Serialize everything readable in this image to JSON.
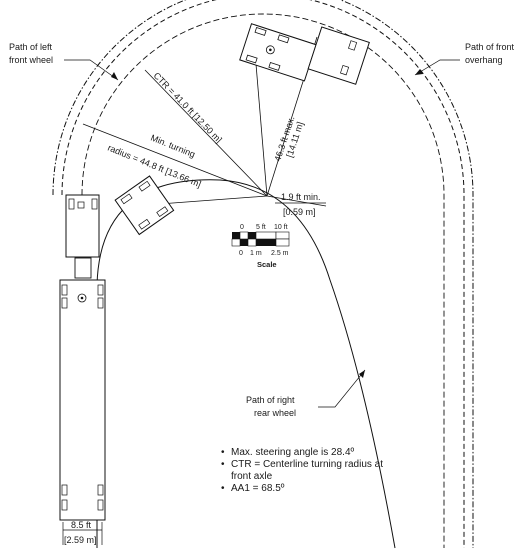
{
  "labels": {
    "left_wheel_path": [
      "Path of left",
      "front wheel"
    ],
    "front_overhang_path": [
      "Path of front",
      "overhang"
    ],
    "right_rear_path": [
      "Path of right",
      "rear wheel"
    ],
    "ctr": "CTR = 41.0 ft [12.50 m]",
    "min_turning_1": "Min. turning",
    "min_turning_2": "radius = 44.8 ft [13.66 m]",
    "max_overhang_1": "46.3 ft max.",
    "max_overhang_2": "[14.11 m]",
    "clearance_1": "1.9 ft min.",
    "clearance_2": "[0.59 m]",
    "width_1": "8.5 ft",
    "width_2": "[2.59 m]"
  },
  "scale": {
    "ft_labels": [
      "0",
      "5 ft",
      "10 ft"
    ],
    "m_labels": [
      "0",
      "1 m",
      "2.5 m"
    ],
    "title": "Scale"
  },
  "notes": [
    "Max. steering angle is 28.4º",
    "CTR = Centerline turning radius at front axle",
    "AA1 = 68.5º"
  ]
}
